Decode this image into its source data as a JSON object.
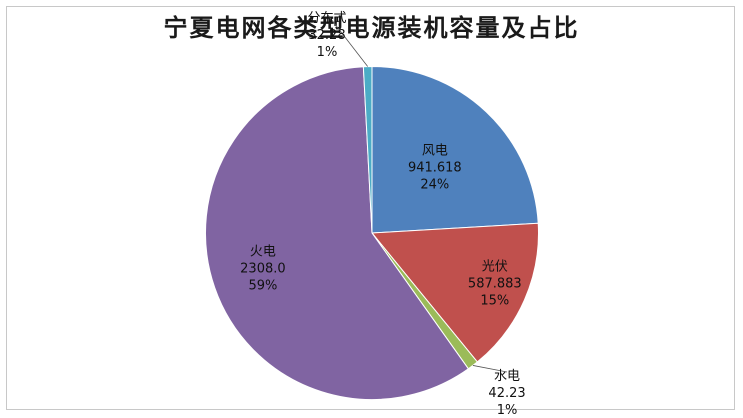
{
  "chart_data": {
    "type": "pie",
    "title": "宁夏电网各类型电源装机容量及占比",
    "slices": [
      {
        "label": "风电",
        "value": 941.618,
        "value_text": "941.618",
        "percent_text": "24%",
        "color": "#4f81bd"
      },
      {
        "label": "光伏",
        "value": 587.883,
        "value_text": "587.883",
        "percent_text": "15%",
        "color": "#c0504d"
      },
      {
        "label": "水电",
        "value": 42.23,
        "value_text": "42.23",
        "percent_text": "1%",
        "color": "#9bbb59"
      },
      {
        "label": "火电",
        "value": 2308.0,
        "value_text": "2308.0",
        "percent_text": "59%",
        "color": "#8064a2"
      },
      {
        "label": "分布式",
        "value": 32.28,
        "value_text": "32.28",
        "percent_text": "1%",
        "color": "#4bacc6"
      }
    ],
    "start": "12 o'clock",
    "direction": "clockwise",
    "legend": "none",
    "label_style": "name, value, percent"
  }
}
